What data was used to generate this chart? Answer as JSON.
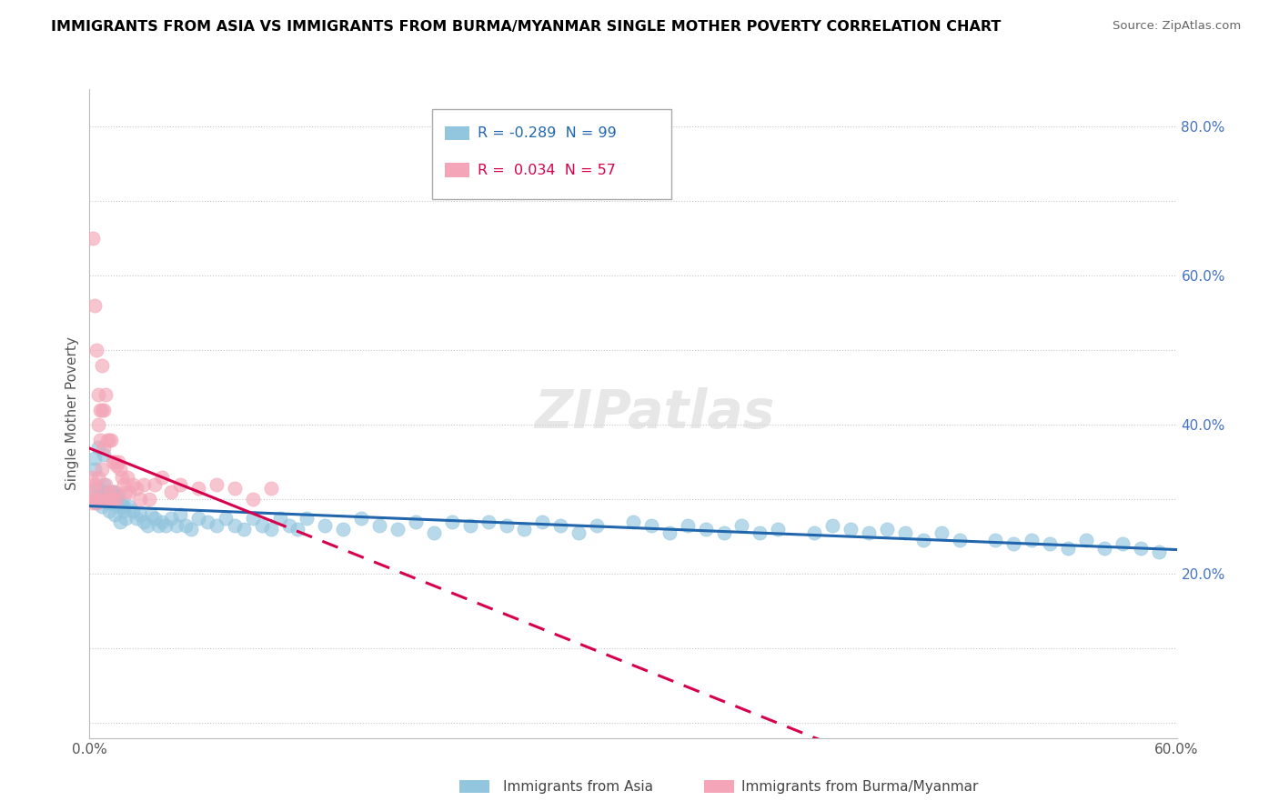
{
  "title": "IMMIGRANTS FROM ASIA VS IMMIGRANTS FROM BURMA/MYANMAR SINGLE MOTHER POVERTY CORRELATION CHART",
  "source": "Source: ZipAtlas.com",
  "ylabel": "Single Mother Poverty",
  "xlim": [
    0.0,
    0.6
  ],
  "ylim": [
    -0.02,
    0.85
  ],
  "R1": -0.289,
  "N1": 99,
  "R2": 0.034,
  "N2": 57,
  "color_blue": "#92c5de",
  "color_pink": "#f4a6b8",
  "line_blue": "#2166ac",
  "line_pink": "#d6004c",
  "watermark_text": "ZIPatlas",
  "blue_x": [
    0.002,
    0.003,
    0.004,
    0.005,
    0.006,
    0.007,
    0.008,
    0.009,
    0.01,
    0.011,
    0.012,
    0.013,
    0.014,
    0.015,
    0.016,
    0.017,
    0.018,
    0.019,
    0.02,
    0.022,
    0.024,
    0.026,
    0.028,
    0.03,
    0.032,
    0.034,
    0.036,
    0.038,
    0.04,
    0.042,
    0.045,
    0.048,
    0.05,
    0.053,
    0.056,
    0.06,
    0.065,
    0.07,
    0.075,
    0.08,
    0.085,
    0.09,
    0.095,
    0.1,
    0.105,
    0.11,
    0.115,
    0.12,
    0.13,
    0.14,
    0.15,
    0.16,
    0.17,
    0.18,
    0.19,
    0.2,
    0.21,
    0.22,
    0.23,
    0.24,
    0.25,
    0.26,
    0.27,
    0.28,
    0.3,
    0.31,
    0.32,
    0.33,
    0.34,
    0.35,
    0.36,
    0.37,
    0.38,
    0.4,
    0.41,
    0.42,
    0.43,
    0.44,
    0.45,
    0.46,
    0.47,
    0.48,
    0.5,
    0.51,
    0.52,
    0.53,
    0.54,
    0.55,
    0.56,
    0.57,
    0.58,
    0.59,
    0.003,
    0.005,
    0.008,
    0.01,
    0.013,
    0.016,
    0.019
  ],
  "blue_y": [
    0.31,
    0.34,
    0.295,
    0.315,
    0.305,
    0.29,
    0.32,
    0.3,
    0.31,
    0.285,
    0.295,
    0.31,
    0.28,
    0.305,
    0.29,
    0.27,
    0.295,
    0.285,
    0.275,
    0.29,
    0.285,
    0.275,
    0.28,
    0.27,
    0.265,
    0.28,
    0.275,
    0.265,
    0.27,
    0.265,
    0.275,
    0.265,
    0.28,
    0.265,
    0.26,
    0.275,
    0.27,
    0.265,
    0.275,
    0.265,
    0.26,
    0.275,
    0.265,
    0.26,
    0.275,
    0.265,
    0.26,
    0.275,
    0.265,
    0.26,
    0.275,
    0.265,
    0.26,
    0.27,
    0.255,
    0.27,
    0.265,
    0.27,
    0.265,
    0.26,
    0.27,
    0.265,
    0.255,
    0.265,
    0.27,
    0.265,
    0.255,
    0.265,
    0.26,
    0.255,
    0.265,
    0.255,
    0.26,
    0.255,
    0.265,
    0.26,
    0.255,
    0.26,
    0.255,
    0.245,
    0.255,
    0.245,
    0.245,
    0.24,
    0.245,
    0.24,
    0.235,
    0.245,
    0.235,
    0.24,
    0.235,
    0.23,
    0.355,
    0.37,
    0.36,
    0.295,
    0.31,
    0.305,
    0.29
  ],
  "pink_x": [
    0.001,
    0.002,
    0.002,
    0.003,
    0.003,
    0.004,
    0.004,
    0.005,
    0.005,
    0.006,
    0.006,
    0.007,
    0.007,
    0.008,
    0.008,
    0.009,
    0.009,
    0.01,
    0.01,
    0.011,
    0.011,
    0.012,
    0.012,
    0.013,
    0.013,
    0.014,
    0.014,
    0.015,
    0.015,
    0.016,
    0.017,
    0.018,
    0.019,
    0.02,
    0.021,
    0.022,
    0.024,
    0.026,
    0.028,
    0.03,
    0.033,
    0.036,
    0.04,
    0.045,
    0.05,
    0.06,
    0.07,
    0.08,
    0.09,
    0.1,
    0.002,
    0.003,
    0.004,
    0.005,
    0.006,
    0.007,
    0.008
  ],
  "pink_y": [
    0.33,
    0.65,
    0.3,
    0.56,
    0.32,
    0.5,
    0.3,
    0.44,
    0.33,
    0.42,
    0.3,
    0.48,
    0.34,
    0.42,
    0.3,
    0.44,
    0.32,
    0.38,
    0.3,
    0.38,
    0.31,
    0.38,
    0.3,
    0.35,
    0.3,
    0.35,
    0.31,
    0.345,
    0.3,
    0.35,
    0.34,
    0.33,
    0.32,
    0.31,
    0.33,
    0.31,
    0.32,
    0.315,
    0.3,
    0.32,
    0.3,
    0.32,
    0.33,
    0.31,
    0.32,
    0.315,
    0.32,
    0.315,
    0.3,
    0.315,
    0.295,
    0.315,
    0.295,
    0.4,
    0.38,
    0.42,
    0.37
  ]
}
